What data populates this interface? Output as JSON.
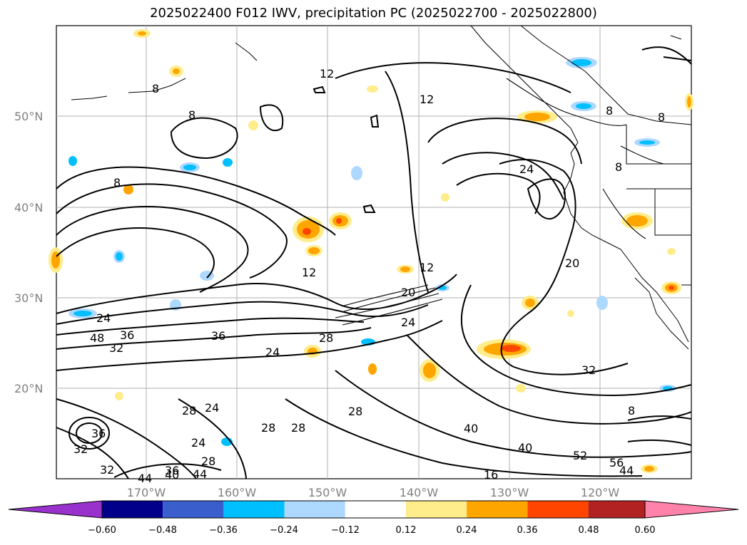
{
  "title": "2025022400 F012 IWV, precipitation PC (2025022700 - 2025022800)",
  "map": {
    "lat_labels": [
      "50°N",
      "40°N",
      "30°N",
      "20°N"
    ],
    "lon_labels": [
      "170°W",
      "160°W",
      "150°W",
      "140°W",
      "130°W",
      "120°W"
    ],
    "contour_labels": [
      {
        "id": "c12a",
        "text": "12"
      },
      {
        "id": "c12b",
        "text": "12"
      },
      {
        "id": "c8a",
        "text": "8"
      },
      {
        "id": "c8b",
        "text": "8"
      },
      {
        "id": "c8c",
        "text": "8"
      },
      {
        "id": "c8d",
        "text": "8"
      },
      {
        "id": "c8e",
        "text": "8"
      },
      {
        "id": "c8f",
        "text": "8"
      },
      {
        "id": "c24a",
        "text": "24"
      },
      {
        "id": "c20a",
        "text": "20"
      },
      {
        "id": "c12c",
        "text": "12"
      },
      {
        "id": "c12d",
        "text": "12"
      },
      {
        "id": "c20b",
        "text": "20"
      },
      {
        "id": "c24b",
        "text": "24"
      },
      {
        "id": "c24c",
        "text": "24"
      },
      {
        "id": "c28a",
        "text": "28"
      },
      {
        "id": "c32a",
        "text": "32"
      },
      {
        "id": "c36a",
        "text": "36"
      },
      {
        "id": "c36b",
        "text": "36"
      },
      {
        "id": "c24d",
        "text": "24"
      },
      {
        "id": "c28b",
        "text": "28"
      },
      {
        "id": "c24e",
        "text": "24"
      },
      {
        "id": "c28c",
        "text": "28"
      },
      {
        "id": "c28d",
        "text": "28"
      },
      {
        "id": "c28e",
        "text": "28"
      },
      {
        "id": "c28f",
        "text": "28"
      },
      {
        "id": "c24f",
        "text": "24"
      },
      {
        "id": "c36c",
        "text": "36"
      },
      {
        "id": "c32b",
        "text": "32"
      },
      {
        "id": "c32c",
        "text": "32"
      },
      {
        "id": "c40a",
        "text": "40"
      },
      {
        "id": "c44a",
        "text": "44"
      },
      {
        "id": "c44b",
        "text": "44"
      },
      {
        "id": "c36d",
        "text": "36"
      },
      {
        "id": "c40b",
        "text": "40"
      },
      {
        "id": "c40c",
        "text": "40"
      },
      {
        "id": "c48a",
        "text": "48"
      },
      {
        "id": "c52a",
        "text": "52"
      },
      {
        "id": "c56a",
        "text": "56"
      },
      {
        "id": "c44c",
        "text": "44"
      },
      {
        "id": "c16a",
        "text": "16"
      },
      {
        "id": "c32d",
        "text": "32"
      },
      {
        "id": "c8g",
        "text": "8"
      }
    ]
  },
  "colorbar": {
    "ticks": [
      "−0.60",
      "−0.48",
      "−0.36",
      "−0.24",
      "−0.12",
      "0.12",
      "0.24",
      "0.36",
      "0.48",
      "0.60"
    ],
    "colors": [
      "#9932CC",
      "#00008B",
      "#3A5FCD",
      "#00BFFF",
      "#ADD8FF",
      "#FFFFFF",
      "#FFEC8B",
      "#FFA500",
      "#FF4500",
      "#B22222",
      "#FF82AB"
    ]
  }
}
